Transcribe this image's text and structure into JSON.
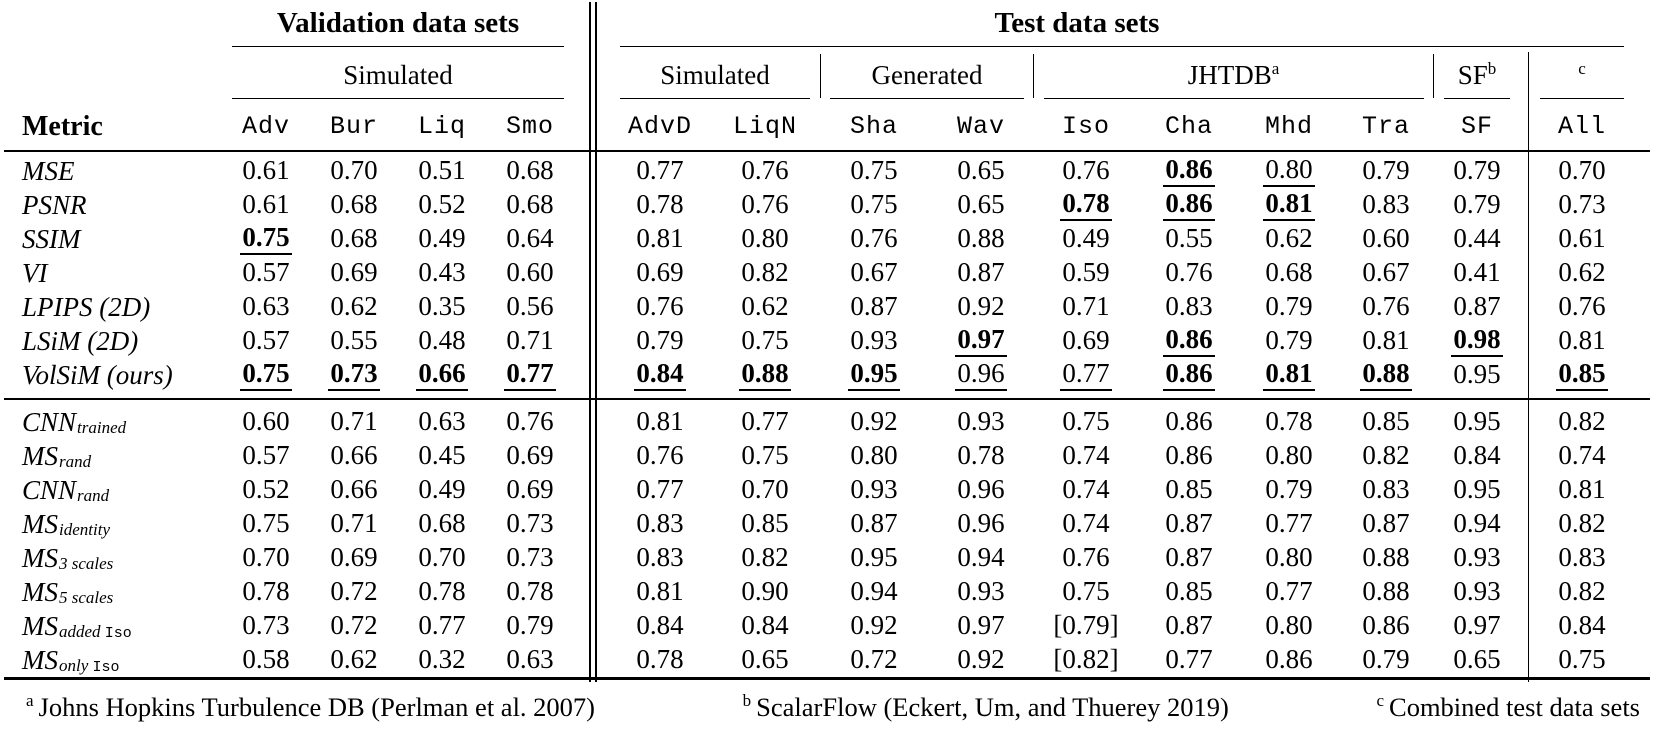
{
  "page": {
    "background": "#ffffff",
    "text_color": "#000000"
  },
  "table": {
    "validation_title": "Validation data sets",
    "test_title": "Test data sets",
    "metric_header": "Metric",
    "groups": {
      "validation_simulated": "Simulated",
      "test_simulated": "Simulated",
      "generated": "Generated",
      "jhtdb": "JHTDB",
      "jhtdb_sup": "a",
      "sf": "SF",
      "sf_sup": "b",
      "combined_sup": "c"
    },
    "validation_columns": [
      "Adv",
      "Bur",
      "Liq",
      "Smo"
    ],
    "test_columns": [
      "AdvD",
      "LiqN",
      "Sha",
      "Wav",
      "Iso",
      "Cha",
      "Mhd",
      "Tra",
      "SF",
      "All"
    ],
    "metric_rows": [
      {
        "label": {
          "main": "MSE"
        },
        "values": [
          "0.61",
          "0.70",
          "0.51",
          "0.68",
          "0.77",
          "0.76",
          "0.75",
          "0.65",
          "0.76",
          "0.86",
          "0.80",
          "0.79",
          "0.79",
          "0.70"
        ],
        "styles": [
          "p",
          "p",
          "p",
          "p",
          "p",
          "p",
          "p",
          "p",
          "p",
          "bu",
          "u",
          "p",
          "p",
          "p"
        ]
      },
      {
        "label": {
          "main": "PSNR"
        },
        "values": [
          "0.61",
          "0.68",
          "0.52",
          "0.68",
          "0.78",
          "0.76",
          "0.75",
          "0.65",
          "0.78",
          "0.86",
          "0.81",
          "0.83",
          "0.79",
          "0.73"
        ],
        "styles": [
          "p",
          "p",
          "p",
          "p",
          "p",
          "p",
          "p",
          "p",
          "bu",
          "bu",
          "bu",
          "p",
          "p",
          "p"
        ]
      },
      {
        "label": {
          "main": "SSIM"
        },
        "values": [
          "0.75",
          "0.68",
          "0.49",
          "0.64",
          "0.81",
          "0.80",
          "0.76",
          "0.88",
          "0.49",
          "0.55",
          "0.62",
          "0.60",
          "0.44",
          "0.61"
        ],
        "styles": [
          "bu",
          "p",
          "p",
          "p",
          "p",
          "p",
          "p",
          "p",
          "p",
          "p",
          "p",
          "p",
          "p",
          "p"
        ]
      },
      {
        "label": {
          "main": "VI"
        },
        "values": [
          "0.57",
          "0.69",
          "0.43",
          "0.60",
          "0.69",
          "0.82",
          "0.67",
          "0.87",
          "0.59",
          "0.76",
          "0.68",
          "0.67",
          "0.41",
          "0.62"
        ],
        "styles": [
          "p",
          "p",
          "p",
          "p",
          "p",
          "p",
          "p",
          "p",
          "p",
          "p",
          "p",
          "p",
          "p",
          "p"
        ]
      },
      {
        "label": {
          "main": "LPIPS (2D)"
        },
        "values": [
          "0.63",
          "0.62",
          "0.35",
          "0.56",
          "0.76",
          "0.62",
          "0.87",
          "0.92",
          "0.71",
          "0.83",
          "0.79",
          "0.76",
          "0.87",
          "0.76"
        ],
        "styles": [
          "p",
          "p",
          "p",
          "p",
          "p",
          "p",
          "p",
          "p",
          "p",
          "p",
          "p",
          "p",
          "p",
          "p"
        ]
      },
      {
        "label": {
          "main": "LSiM (2D)"
        },
        "values": [
          "0.57",
          "0.55",
          "0.48",
          "0.71",
          "0.79",
          "0.75",
          "0.93",
          "0.97",
          "0.69",
          "0.86",
          "0.79",
          "0.81",
          "0.98",
          "0.81"
        ],
        "styles": [
          "p",
          "p",
          "p",
          "p",
          "p",
          "p",
          "p",
          "bu",
          "p",
          "bu",
          "p",
          "p",
          "bu",
          "p"
        ]
      },
      {
        "label": {
          "main": "VolSiM (ours)"
        },
        "values": [
          "0.75",
          "0.73",
          "0.66",
          "0.77",
          "0.84",
          "0.88",
          "0.95",
          "0.96",
          "0.77",
          "0.86",
          "0.81",
          "0.88",
          "0.95",
          "0.85"
        ],
        "styles": [
          "bu",
          "bu",
          "bu",
          "bu",
          "bu",
          "bu",
          "bu",
          "u",
          "u",
          "bu",
          "bu",
          "bu",
          "p",
          "bu"
        ]
      }
    ],
    "ablation_rows": [
      {
        "label": {
          "main": "CNN",
          "sub": "trained"
        },
        "values": [
          "0.60",
          "0.71",
          "0.63",
          "0.76",
          "0.81",
          "0.77",
          "0.92",
          "0.93",
          "0.75",
          "0.86",
          "0.78",
          "0.85",
          "0.95",
          "0.82"
        ]
      },
      {
        "label": {
          "main": "MS",
          "sub": "rand"
        },
        "values": [
          "0.57",
          "0.66",
          "0.45",
          "0.69",
          "0.76",
          "0.75",
          "0.80",
          "0.78",
          "0.74",
          "0.86",
          "0.80",
          "0.82",
          "0.84",
          "0.74"
        ]
      },
      {
        "label": {
          "main": "CNN",
          "sub": "rand"
        },
        "values": [
          "0.52",
          "0.66",
          "0.49",
          "0.69",
          "0.77",
          "0.70",
          "0.93",
          "0.96",
          "0.74",
          "0.85",
          "0.79",
          "0.83",
          "0.95",
          "0.81"
        ]
      },
      {
        "label": {
          "main": "MS",
          "sub": "identity"
        },
        "values": [
          "0.75",
          "0.71",
          "0.68",
          "0.73",
          "0.83",
          "0.85",
          "0.87",
          "0.96",
          "0.74",
          "0.87",
          "0.77",
          "0.87",
          "0.94",
          "0.82"
        ]
      },
      {
        "label": {
          "main": "MS",
          "sub": "3 scales"
        },
        "values": [
          "0.70",
          "0.69",
          "0.70",
          "0.73",
          "0.83",
          "0.82",
          "0.95",
          "0.94",
          "0.76",
          "0.87",
          "0.80",
          "0.88",
          "0.93",
          "0.83"
        ]
      },
      {
        "label": {
          "main": "MS",
          "sub": "5 scales"
        },
        "values": [
          "0.78",
          "0.72",
          "0.78",
          "0.78",
          "0.81",
          "0.90",
          "0.94",
          "0.93",
          "0.75",
          "0.85",
          "0.77",
          "0.88",
          "0.93",
          "0.82"
        ]
      },
      {
        "label": {
          "main": "MS",
          "sub": "added ",
          "sub_mono": "Iso"
        },
        "values": [
          "0.73",
          "0.72",
          "0.77",
          "0.79",
          "0.84",
          "0.84",
          "0.92",
          "0.97",
          "[0.79]",
          "0.87",
          "0.80",
          "0.86",
          "0.97",
          "0.84"
        ]
      },
      {
        "label": {
          "main": "MS",
          "sub": "only ",
          "sub_mono": "Iso"
        },
        "values": [
          "0.58",
          "0.62",
          "0.32",
          "0.63",
          "0.78",
          "0.65",
          "0.72",
          "0.92",
          "[0.82]",
          "0.77",
          "0.86",
          "0.79",
          "0.65",
          "0.75"
        ]
      }
    ],
    "footnotes": [
      {
        "sup": "a",
        "text": "Johns Hopkins Turbulence DB (Perlman et al. 2007)"
      },
      {
        "sup": "b",
        "text": "ScalarFlow (Eckert, Um, and Thuerey 2019)"
      },
      {
        "sup": "c",
        "text": "Combined test data sets"
      }
    ]
  }
}
